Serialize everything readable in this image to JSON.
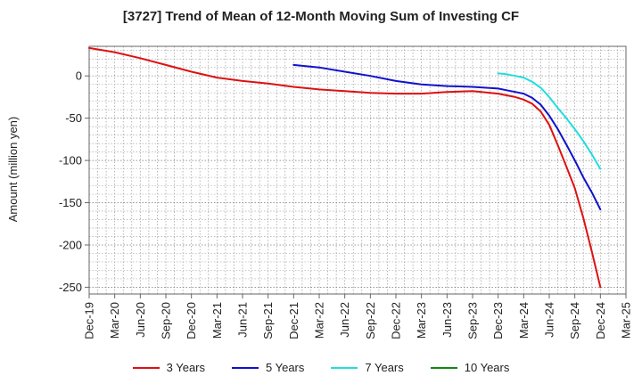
{
  "chart_data": {
    "type": "line",
    "title": "[3727]  Trend of Mean of 12-Month Moving Sum of Investing CF",
    "xlabel": "",
    "ylabel": "Amount (million yen)",
    "ylim": [
      -258,
      35
    ],
    "yticks": [
      0,
      -50,
      -100,
      -150,
      -200,
      -250
    ],
    "categories": [
      "Dec-19",
      "Mar-20",
      "Jun-20",
      "Sep-20",
      "Dec-20",
      "Mar-21",
      "Jun-21",
      "Sep-21",
      "Dec-21",
      "Mar-22",
      "Jun-22",
      "Sep-22",
      "Dec-22",
      "Mar-23",
      "Jun-23",
      "Sep-23",
      "Dec-23",
      "Mar-24",
      "Jun-24",
      "Sep-24",
      "Dec-24",
      "Mar-25"
    ],
    "x_months": [
      "2019-12",
      "2020-03",
      "2020-06",
      "2020-09",
      "2020-12",
      "2021-03",
      "2021-06",
      "2021-09",
      "2021-12",
      "2022-03",
      "2022-06",
      "2022-09",
      "2022-12",
      "2023-03",
      "2023-06",
      "2023-09",
      "2023-12",
      "2024-03",
      "2024-06",
      "2024-09",
      "2024-12",
      "2025-03"
    ],
    "grid": true,
    "legend_position": "bottom",
    "series": [
      {
        "name": "3 Years",
        "color": "#dd1111",
        "x": [
          "2019-12",
          "2020-03",
          "2020-06",
          "2020-09",
          "2020-12",
          "2021-03",
          "2021-06",
          "2021-09",
          "2021-12",
          "2022-03",
          "2022-06",
          "2022-09",
          "2022-12",
          "2023-03",
          "2023-06",
          "2023-09",
          "2023-12",
          "2024-01",
          "2024-02",
          "2024-03",
          "2024-04",
          "2024-05",
          "2024-06",
          "2024-07",
          "2024-08",
          "2024-09",
          "2024-10",
          "2024-11",
          "2024-12"
        ],
        "values": [
          33,
          28,
          21,
          13,
          5,
          -2,
          -6,
          -9,
          -13,
          -16,
          -18,
          -20,
          -21,
          -21,
          -19,
          -18,
          -21,
          -23,
          -25,
          -28,
          -33,
          -42,
          -58,
          -82,
          -107,
          -133,
          -168,
          -208,
          -250
        ]
      },
      {
        "name": "5 Years",
        "color": "#1111cc",
        "x": [
          "2021-12",
          "2022-03",
          "2022-06",
          "2022-09",
          "2022-12",
          "2023-03",
          "2023-06",
          "2023-09",
          "2023-12",
          "2024-01",
          "2024-02",
          "2024-03",
          "2024-04",
          "2024-05",
          "2024-06",
          "2024-07",
          "2024-08",
          "2024-09",
          "2024-10",
          "2024-11",
          "2024-12"
        ],
        "values": [
          13,
          10,
          5,
          0,
          -6,
          -10,
          -12,
          -13,
          -15,
          -17,
          -19,
          -21,
          -26,
          -34,
          -47,
          -63,
          -81,
          -100,
          -120,
          -138,
          -158
        ]
      },
      {
        "name": "7 Years",
        "color": "#22dddd",
        "x": [
          "2023-12",
          "2024-01",
          "2024-02",
          "2024-03",
          "2024-04",
          "2024-05",
          "2024-06",
          "2024-07",
          "2024-08",
          "2024-09",
          "2024-10",
          "2024-11",
          "2024-12"
        ],
        "values": [
          3,
          2,
          0,
          -2,
          -7,
          -14,
          -25,
          -38,
          -50,
          -63,
          -77,
          -93,
          -110
        ]
      },
      {
        "name": "10 Years",
        "color": "#118811",
        "x": [],
        "values": []
      }
    ]
  }
}
